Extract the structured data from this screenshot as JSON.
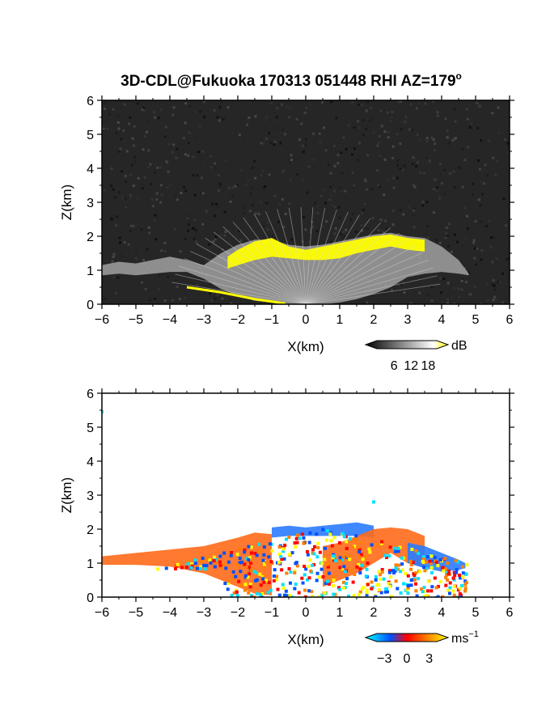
{
  "title": {
    "main": "3D-CDL@Fukuoka 170313 051448 RHI AZ=179",
    "degree_mark": "o"
  },
  "chart_data": [
    {
      "type": "heatmap",
      "quantity": "reflectivity",
      "xlabel": "X(km)",
      "ylabel": "Z(km)",
      "xlim": [
        -6,
        6
      ],
      "ylim": [
        0,
        6
      ],
      "xticks": [
        "−6",
        "−5",
        "−4",
        "−3",
        "−2",
        "−1",
        "0",
        "1",
        "2",
        "3",
        "4",
        "5",
        "6"
      ],
      "yticks": [
        "0",
        "1",
        "2",
        "3",
        "4",
        "5",
        "6"
      ],
      "background_color": "#262626",
      "colorscale": [
        "#000000",
        "#ffffff",
        "#ffff00"
      ],
      "colorbar": {
        "unit": "dB",
        "ticks": [
          "6",
          "12",
          "18"
        ],
        "tick_values": [
          6,
          12,
          18
        ],
        "range": [
          0,
          21
        ]
      },
      "echo_layers": [
        {
          "level": "gray",
          "x": [
            -6.0,
            -5.5,
            -5.0,
            -4.5,
            -4.0,
            -3.5,
            -3.0,
            -2.5,
            -2.0,
            -1.5,
            -1.0,
            -0.5,
            0.0,
            0.5,
            1.0,
            1.5,
            2.0,
            2.5,
            3.0,
            3.5,
            4.0,
            4.5,
            4.8
          ],
          "top": [
            1.15,
            1.25,
            1.2,
            1.3,
            1.4,
            1.3,
            1.15,
            1.5,
            1.75,
            1.9,
            1.9,
            1.75,
            1.7,
            1.75,
            1.85,
            1.95,
            2.05,
            2.1,
            2.0,
            1.95,
            1.7,
            1.3,
            0.9
          ],
          "bottom": [
            0.85,
            0.9,
            0.85,
            0.9,
            0.95,
            0.95,
            0.75,
            0.45,
            0.25,
            0.1,
            0.05,
            0.0,
            0.0,
            0.0,
            0.05,
            0.15,
            0.3,
            0.5,
            0.8,
            0.9,
            0.95,
            0.9,
            0.85
          ]
        },
        {
          "level": "yellow",
          "x": [
            -2.3,
            -2.0,
            -1.5,
            -1.0,
            -0.5,
            0.0,
            0.5,
            1.0,
            1.5,
            2.0,
            2.5,
            3.0,
            3.5
          ],
          "top": [
            1.4,
            1.6,
            1.85,
            1.95,
            1.7,
            1.6,
            1.7,
            1.8,
            1.9,
            2.0,
            2.05,
            1.95,
            1.9
          ],
          "bottom": [
            1.05,
            1.15,
            1.3,
            1.4,
            1.35,
            1.3,
            1.3,
            1.35,
            1.5,
            1.6,
            1.7,
            1.6,
            1.55
          ]
        }
      ],
      "ground_clutter_line": {
        "x": [
          -3.5,
          -2.5,
          -1.5,
          -0.6
        ],
        "z": [
          0.5,
          0.35,
          0.15,
          0.02
        ]
      }
    },
    {
      "type": "heatmap",
      "quantity": "doppler_velocity",
      "xlabel": "X(km)",
      "ylabel": "Z(km)",
      "xlim": [
        -6,
        6
      ],
      "ylim": [
        0,
        6
      ],
      "xticks": [
        "−6",
        "−5",
        "−4",
        "−3",
        "−2",
        "−1",
        "0",
        "1",
        "2",
        "3",
        "4",
        "5",
        "6"
      ],
      "yticks": [
        "0",
        "1",
        "2",
        "3",
        "4",
        "5",
        "6"
      ],
      "background_color": "#ffffff",
      "colorscale": [
        "#00ffff",
        "#0050ff",
        "#ff0000",
        "#ff8000",
        "#ffff00"
      ],
      "colorbar": {
        "unit": "ms",
        "unit_exponent": "−1",
        "ticks": [
          "−3",
          "0",
          "3"
        ],
        "tick_values": [
          -3,
          0,
          3
        ],
        "range": [
          -4,
          4
        ]
      },
      "regions": [
        {
          "sign": "positive",
          "x": [
            -6.0,
            -5.0,
            -4.0,
            -3.0,
            -2.0,
            -1.5,
            -1.0
          ],
          "top": [
            1.2,
            1.3,
            1.4,
            1.5,
            1.75,
            1.9,
            1.85
          ],
          "bottom": [
            0.95,
            0.95,
            0.9,
            0.7,
            0.3,
            0.1,
            0.05
          ]
        },
        {
          "sign": "negative",
          "x": [
            -1.0,
            -0.5,
            0.0,
            0.5,
            1.0,
            1.5,
            2.0
          ],
          "top": [
            2.05,
            2.1,
            2.05,
            2.1,
            2.15,
            2.2,
            2.1
          ],
          "bottom": [
            1.75,
            1.8,
            1.8,
            1.8,
            1.8,
            1.8,
            1.75
          ]
        },
        {
          "sign": "positive",
          "x": [
            0.5,
            1.0,
            1.5,
            2.0,
            2.5,
            3.0,
            3.5
          ],
          "top": [
            1.5,
            1.6,
            1.8,
            2.0,
            2.05,
            2.0,
            1.8
          ],
          "bottom": [
            0.3,
            0.5,
            0.7,
            1.0,
            1.3,
            1.0,
            0.9
          ]
        },
        {
          "sign": "negative",
          "x": [
            3.0,
            3.5,
            4.0,
            4.5,
            4.7
          ],
          "top": [
            1.6,
            1.5,
            1.3,
            1.1,
            1.0
          ],
          "bottom": [
            1.0,
            0.85,
            0.75,
            0.8,
            0.85
          ]
        }
      ],
      "isolated_points": [
        {
          "x": 2.0,
          "z": 2.8
        },
        {
          "x": -6.0,
          "z": 5.45
        }
      ]
    }
  ]
}
